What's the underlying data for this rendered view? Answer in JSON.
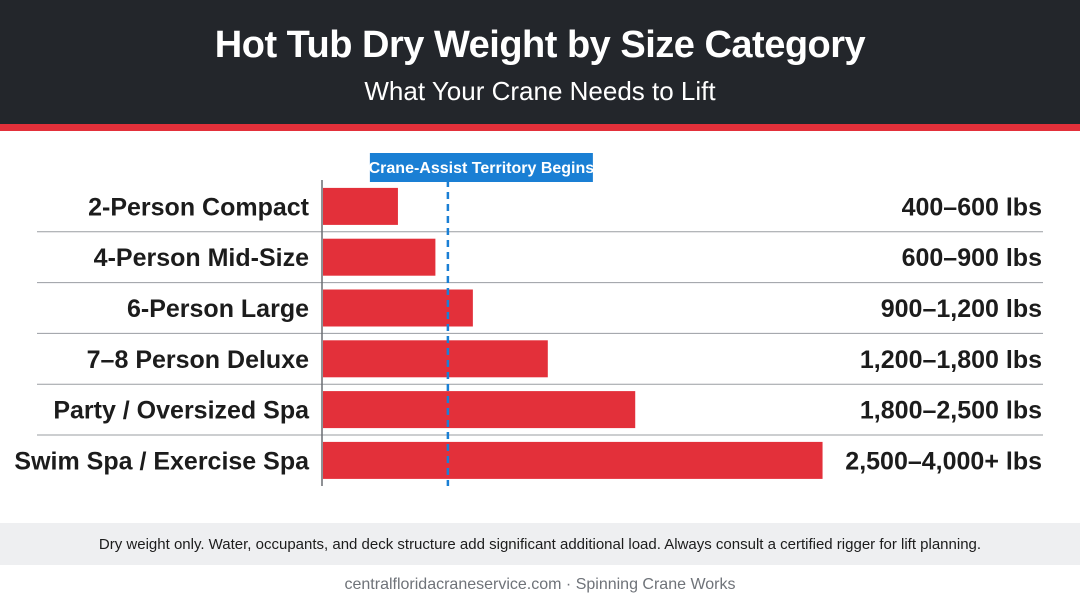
{
  "header": {
    "title": "Hot Tub Dry Weight by Size Category",
    "subtitle": "What Your Crane Needs to Lift"
  },
  "colors": {
    "header_bg": "#23262b",
    "accent": "#e3303a",
    "bar": "#e3303a",
    "threshold": "#1a7fd4",
    "divider": "#9a9da2"
  },
  "chart_data": {
    "type": "bar",
    "orientation": "horizontal",
    "title": "Hot Tub Dry Weight by Size Category",
    "subtitle": "What Your Crane Needs to Lift",
    "categories": [
      "2-Person Compact",
      "4-Person Mid-Size",
      "6-Person Large",
      "7–8 Person Deluxe",
      "Party / Oversized Spa",
      "Swim Spa / Exercise Spa"
    ],
    "values": [
      600,
      900,
      1200,
      1800,
      2500,
      4000
    ],
    "value_labels": [
      "400–600 lbs",
      "600–900 lbs",
      "900–1,200 lbs",
      "1,200–1,800 lbs",
      "1,800–2,500 lbs",
      "2,500–4,000+ lbs"
    ],
    "xlim": [
      0,
      4500
    ],
    "threshold": {
      "value": 1000,
      "label": "Crane-Assist Territory Begins"
    },
    "grid": false,
    "legend": "none"
  },
  "footnote": "Dry weight only. Water, occupants, and deck structure add significant additional load. Always consult a certified rigger for lift planning.",
  "credit": "centralfloridacraneservice.com · Spinning Crane Works"
}
